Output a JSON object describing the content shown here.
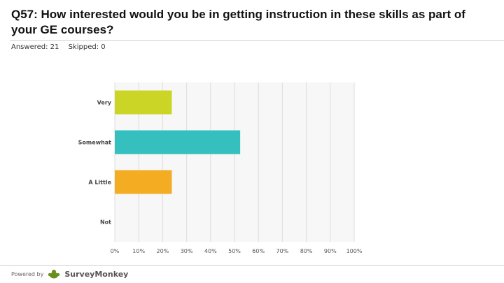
{
  "header": {
    "title": "Q57: How interested would you be in getting instruction in these skills as part of your GE courses?",
    "answered": "Answered: 21",
    "skipped": "Skipped: 0"
  },
  "footer": {
    "powered_by": "Powered by",
    "brand": "SurveyMonkey",
    "logo_icon": "surveymonkey-logo-icon"
  },
  "chart_data": {
    "type": "bar",
    "orientation": "horizontal",
    "categories": [
      "Very",
      "Somewhat",
      "A Little",
      "Not"
    ],
    "values": [
      23.81,
      52.38,
      23.81,
      0
    ],
    "colors": [
      "#cad525",
      "#35bfbf",
      "#f4ac22",
      "#cccccc"
    ],
    "xlim": [
      0,
      100
    ],
    "x_ticks": [
      0,
      10,
      20,
      30,
      40,
      50,
      60,
      70,
      80,
      90,
      100
    ],
    "x_tick_labels": [
      "0%",
      "10%",
      "20%",
      "30%",
      "40%",
      "50%",
      "60%",
      "70%",
      "80%",
      "90%",
      "100%"
    ],
    "grid": true,
    "title": "",
    "xlabel": "",
    "ylabel": ""
  }
}
